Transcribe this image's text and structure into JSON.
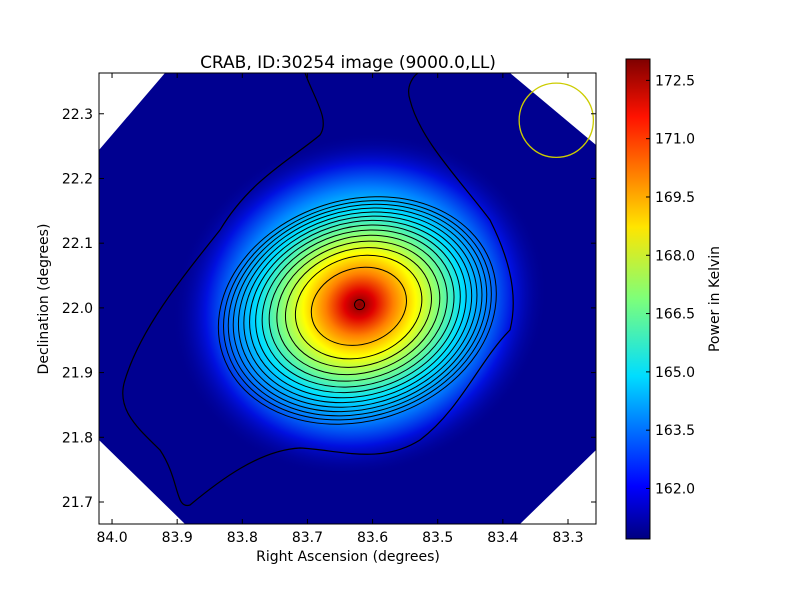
{
  "chart_data": {
    "type": "heatmap",
    "title": "CRAB, ID:30254 image (9000.0,LL)",
    "xlabel": "Right Ascension (degrees)",
    "ylabel": "Declination (degrees)",
    "xlim": [
      84.02,
      83.257
    ],
    "ylim": [
      21.666,
      22.363
    ],
    "xticks": [
      "84.0",
      "83.9",
      "83.8",
      "83.7",
      "83.6",
      "83.5",
      "83.4",
      "83.3"
    ],
    "yticks": [
      "21.7",
      "21.8",
      "21.9",
      "22.0",
      "22.1",
      "22.2",
      "22.3"
    ],
    "source_peak": {
      "ra": 83.62,
      "dec": 22.005,
      "value": 173.0
    },
    "background_value": 160.7,
    "beam": {
      "ra": 83.318,
      "dec": 22.29,
      "radius_deg": 0.057,
      "color": "#cccc00"
    },
    "contour_levels": [
      161.3,
      162.2,
      163.0,
      163.8,
      164.6,
      165.4,
      166.2,
      167.0,
      167.8,
      168.6,
      169.4,
      170.2,
      171.0,
      172.0
    ],
    "colorbar": {
      "label": "Power in Kelvin",
      "range": [
        160.7,
        173.05
      ],
      "ticks": [
        "172.5",
        "171.0",
        "169.5",
        "168.0",
        "166.5",
        "165.0",
        "163.5",
        "162.0"
      ],
      "colormap": "jet"
    }
  }
}
